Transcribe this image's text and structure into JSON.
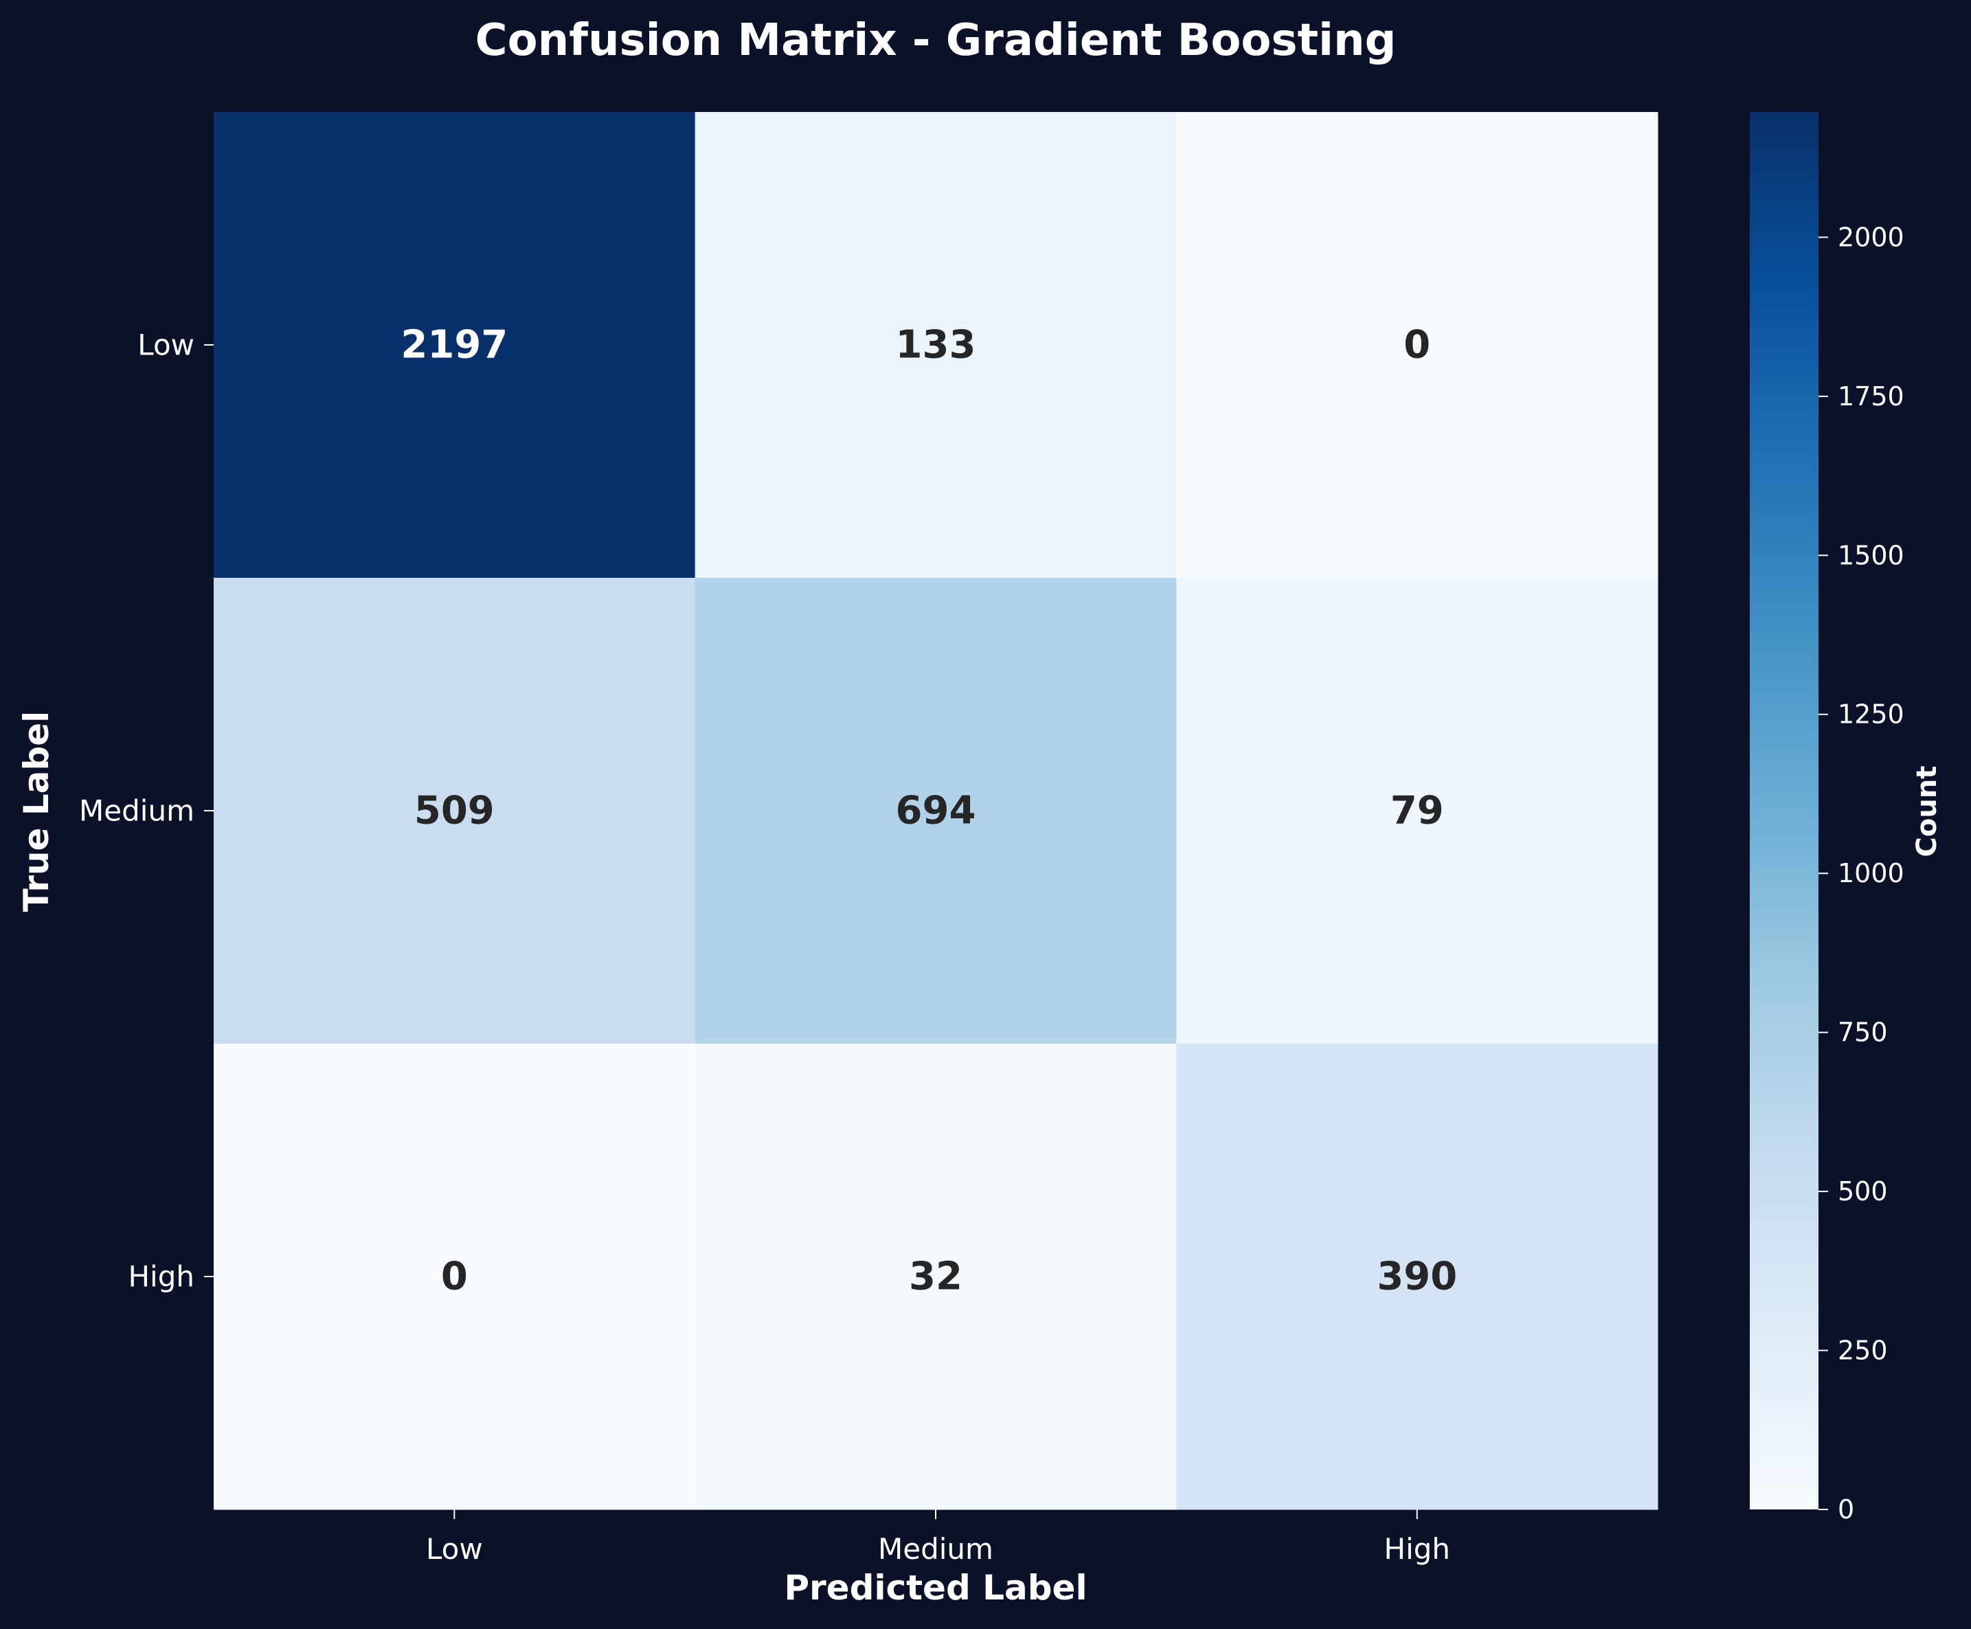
{
  "chart_data": {
    "type": "heatmap",
    "title": "Confusion Matrix - Gradient Boosting",
    "xlabel": "Predicted Label",
    "ylabel": "True Label",
    "x_categories": [
      "Low",
      "Medium",
      "High"
    ],
    "y_categories": [
      "Low",
      "Medium",
      "High"
    ],
    "values": [
      [
        2197,
        133,
        0
      ],
      [
        509,
        694,
        79
      ],
      [
        0,
        32,
        390
      ]
    ],
    "colormap": "Blues",
    "colorbar": {
      "label": "Count",
      "range": [
        0,
        2197
      ],
      "ticks": [
        0,
        250,
        500,
        750,
        1000,
        1250,
        1500,
        1750,
        2000
      ]
    },
    "colors": {
      "background": "#0b1129",
      "text_light": "#ffffff",
      "text_dark": "#262626"
    }
  }
}
